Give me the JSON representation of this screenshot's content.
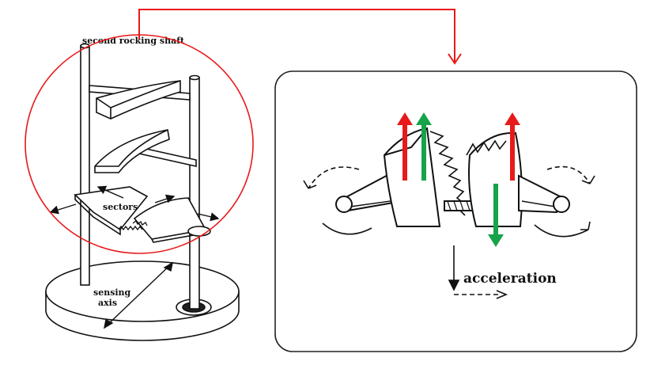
{
  "labels": {
    "second_rocking_shaft": "second rocking shaft",
    "sectors": "sectors",
    "sensing_axis_line1": "sensing",
    "sensing_axis_line2": "axis",
    "acceleration": "acceleration"
  },
  "colors": {
    "highlight": "#e8191b",
    "arrow_up": "#e8191b",
    "arrow_inertial": "#16a34a",
    "ink": "#111111"
  }
}
